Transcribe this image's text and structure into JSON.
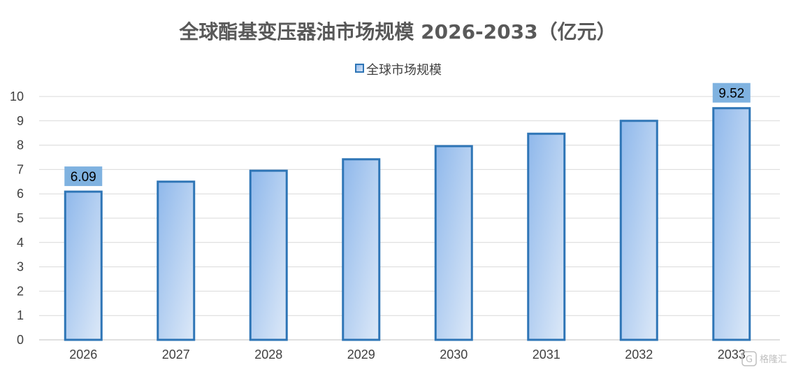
{
  "chart_data": {
    "type": "bar",
    "title": "全球酯基变压器油市场规模 2026-2033（亿元）",
    "categories": [
      "2026",
      "2027",
      "2028",
      "2029",
      "2030",
      "2031",
      "2032",
      "2033"
    ],
    "series": [
      {
        "name": "全球市场规模",
        "values": [
          6.09,
          6.5,
          6.95,
          7.42,
          7.96,
          8.47,
          9.0,
          9.52
        ]
      }
    ],
    "data_labels": [
      {
        "category": "2026",
        "text": "6.09"
      },
      {
        "category": "2033",
        "text": "9.52"
      }
    ],
    "ylim": [
      0,
      10
    ],
    "yticks": [
      0,
      1,
      2,
      3,
      4,
      5,
      6,
      7,
      8,
      9,
      10
    ],
    "grid": true,
    "legend_position": "top-center",
    "colors": {
      "bar_stroke": "#2e75b6",
      "bar_fill_top": "#8fb8eb",
      "bar_fill_bottom": "#dde9f8",
      "label_box": "#7fb2e0"
    }
  },
  "watermark": {
    "icon": "gelonghui-logo-icon",
    "text": "格隆汇"
  }
}
